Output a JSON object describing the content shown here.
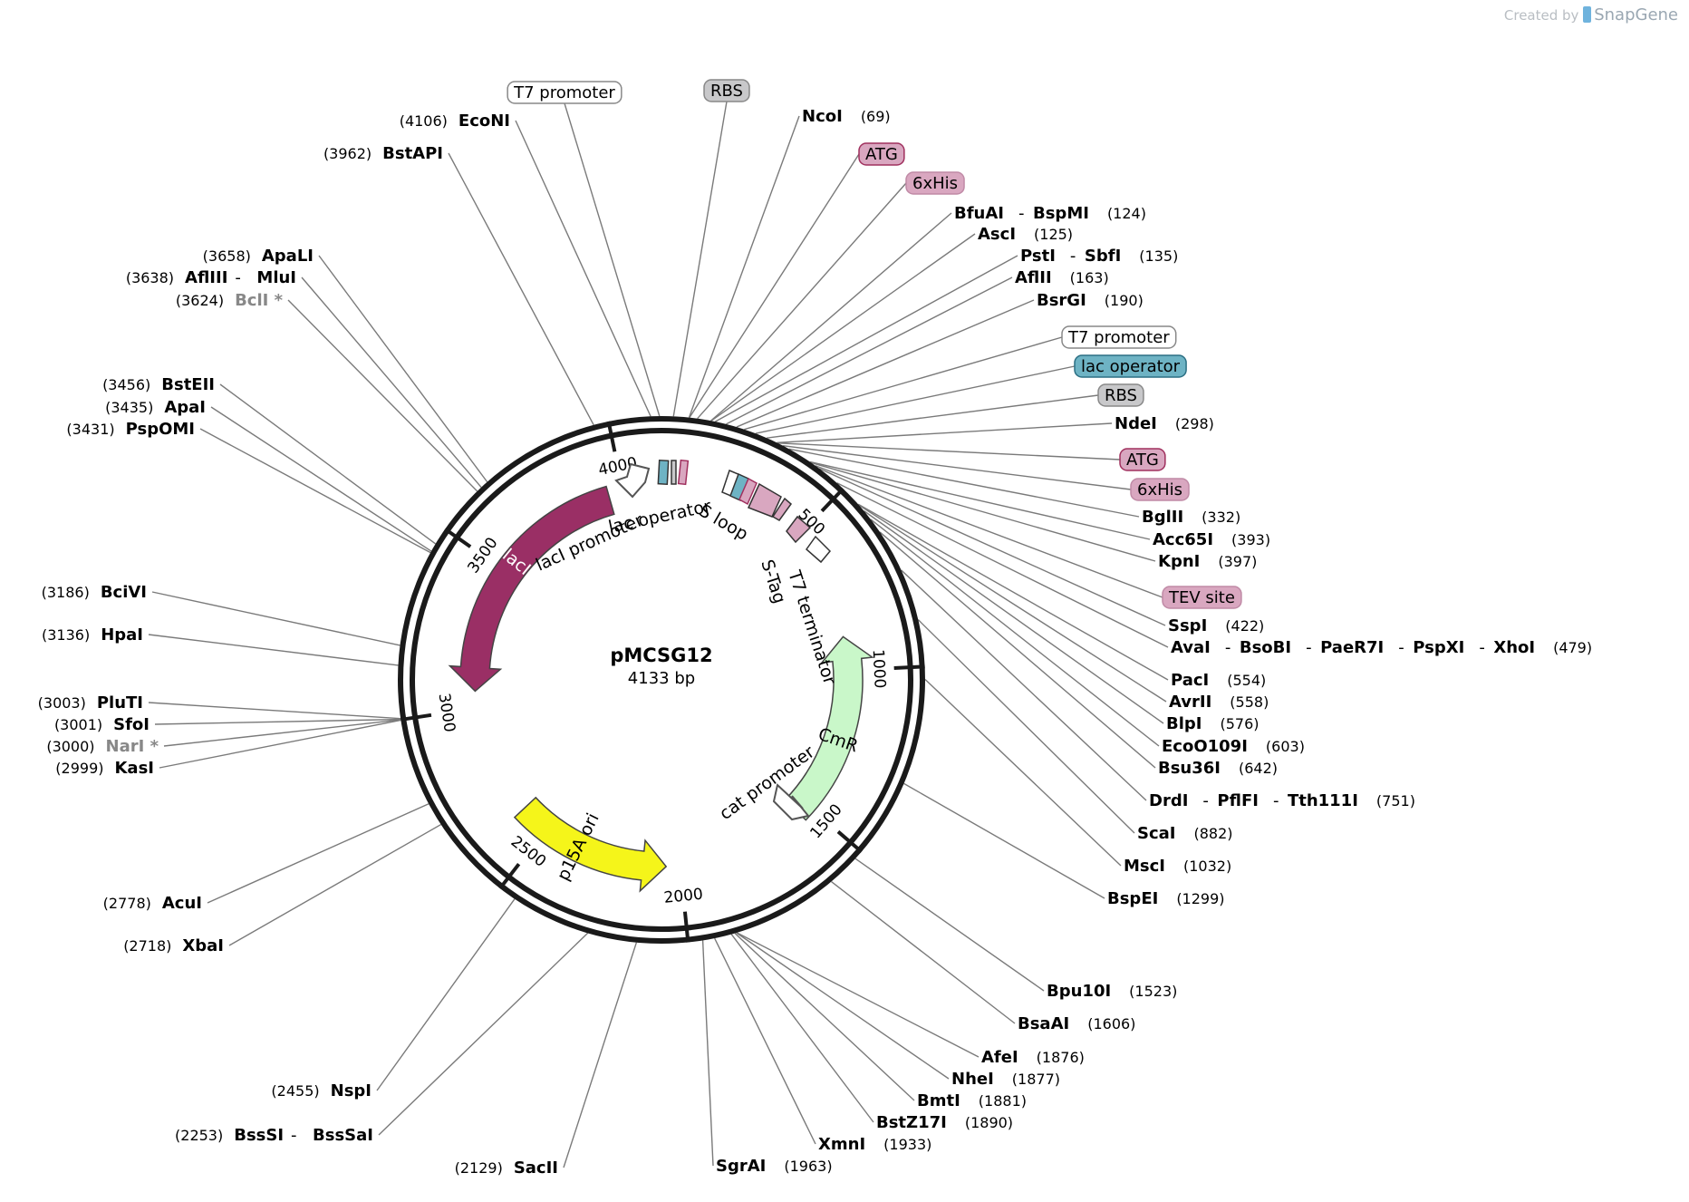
{
  "credit": {
    "prefix": "Created by",
    "brand": "SnapGene"
  },
  "plasmid": {
    "name": "pMCSG12",
    "size_label": "4133 bp",
    "length": 4133
  },
  "colors": {
    "backbone": "#1a1a1a",
    "lacI": "#9a2f65",
    "p15A_ori": "#f5f51a",
    "CmR": "#c9f7c9",
    "lac_operator": "#6eb3c4",
    "pink": "#d9a7c0",
    "pink_border": "#a0305e",
    "grey_box": "#c8c8ca",
    "leader": "#7a7a7a"
  },
  "ticks": [
    {
      "pos": 500,
      "label": "500"
    },
    {
      "pos": 1000,
      "label": "1000"
    },
    {
      "pos": 1500,
      "label": "1500"
    },
    {
      "pos": 2000,
      "label": "2000"
    },
    {
      "pos": 2500,
      "label": "2500"
    },
    {
      "pos": 3000,
      "label": "3000"
    },
    {
      "pos": 3500,
      "label": "3500"
    },
    {
      "pos": 4000,
      "label": "4000"
    }
  ],
  "map_features": [
    {
      "name": "lacI",
      "start": 3950,
      "end": 3060,
      "strand": -1,
      "color": "#9a2f65",
      "text_color": "#ffffff"
    },
    {
      "name": "p15A ori",
      "start": 2605,
      "end": 2050,
      "strand": -1,
      "color": "#f5f51a",
      "text_color": "#000000"
    },
    {
      "name": "CmR",
      "start": 1540,
      "end": 880,
      "strand": -1,
      "color": "#c9f7c9",
      "text_color": "#000000"
    }
  ],
  "inner_labels": [
    {
      "text": "lacI promoter"
    },
    {
      "text": "lac operator"
    },
    {
      "text": "S loop"
    },
    {
      "text": "S-Tag"
    },
    {
      "text": "T7 terminator"
    },
    {
      "text": "cat promoter"
    }
  ],
  "right_labels": [
    {
      "type": "enzyme",
      "names": [
        "NcoI"
      ],
      "pos": "(69)",
      "site": 69
    },
    {
      "type": "feature",
      "text": "ATG",
      "style": "pink-border",
      "site": 70
    },
    {
      "type": "feature",
      "text": "6xHis",
      "style": "pink",
      "site": 90
    },
    {
      "type": "enzyme",
      "names": [
        "BfuAI",
        "BspMI"
      ],
      "pos": "(124)",
      "site": 124
    },
    {
      "type": "enzyme",
      "names": [
        "AscI"
      ],
      "pos": "(125)",
      "site": 125
    },
    {
      "type": "enzyme",
      "names": [
        "PstI",
        "SbfI"
      ],
      "pos": "(135)",
      "site": 135
    },
    {
      "type": "enzyme",
      "names": [
        "AflII"
      ],
      "pos": "(163)",
      "site": 163
    },
    {
      "type": "enzyme",
      "names": [
        "BsrGI"
      ],
      "pos": "(190)",
      "site": 190
    },
    {
      "type": "feature",
      "text": "T7 promoter",
      "style": "white",
      "site": 210
    },
    {
      "type": "feature",
      "text": "lac operator",
      "style": "blue",
      "site": 240
    },
    {
      "type": "feature",
      "text": "RBS",
      "style": "grey",
      "site": 270
    },
    {
      "type": "enzyme",
      "names": [
        "NdeI"
      ],
      "pos": "(298)",
      "site": 298
    },
    {
      "type": "feature",
      "text": "ATG",
      "style": "pink-border",
      "site": 300
    },
    {
      "type": "feature",
      "text": "6xHis",
      "style": "pink",
      "site": 315
    },
    {
      "type": "enzyme",
      "names": [
        "BglII"
      ],
      "pos": "(332)",
      "site": 332
    },
    {
      "type": "enzyme",
      "names": [
        "Acc65I"
      ],
      "pos": "(393)",
      "site": 393
    },
    {
      "type": "enzyme",
      "names": [
        "KpnI"
      ],
      "pos": "(397)",
      "site": 397
    },
    {
      "type": "feature",
      "text": "TEV site",
      "style": "pink",
      "site": 410
    },
    {
      "type": "enzyme",
      "names": [
        "SspI"
      ],
      "pos": "(422)",
      "site": 422
    },
    {
      "type": "enzyme",
      "names": [
        "AvaI",
        "BsoBI",
        "PaeR7I",
        "PspXI",
        "XhoI"
      ],
      "pos": "(479)",
      "site": 479
    },
    {
      "type": "enzyme",
      "names": [
        "PacI"
      ],
      "pos": "(554)",
      "site": 554
    },
    {
      "type": "enzyme",
      "names": [
        "AvrII"
      ],
      "pos": "(558)",
      "site": 558
    },
    {
      "type": "enzyme",
      "names": [
        "BlpI"
      ],
      "pos": "(576)",
      "site": 576
    },
    {
      "type": "enzyme",
      "names": [
        "EcoO109I"
      ],
      "pos": "(603)",
      "site": 603
    },
    {
      "type": "enzyme",
      "names": [
        "Bsu36I"
      ],
      "pos": "(642)",
      "site": 642
    },
    {
      "type": "enzyme",
      "names": [
        "DrdI",
        "PflFI",
        "Tth111I"
      ],
      "pos": "(751)",
      "site": 751
    },
    {
      "type": "enzyme",
      "names": [
        "ScaI"
      ],
      "pos": "(882)",
      "site": 882
    },
    {
      "type": "enzyme",
      "names": [
        "MscI"
      ],
      "pos": "(1032)",
      "site": 1032
    },
    {
      "type": "enzyme",
      "names": [
        "BspEI"
      ],
      "pos": "(1299)",
      "site": 1299
    },
    {
      "type": "enzyme",
      "names": [
        "Bpu10I"
      ],
      "pos": "(1523)",
      "site": 1523
    },
    {
      "type": "enzyme",
      "names": [
        "BsaAI"
      ],
      "pos": "(1606)",
      "site": 1606
    },
    {
      "type": "enzyme",
      "names": [
        "AfeI"
      ],
      "pos": "(1876)",
      "site": 1876
    },
    {
      "type": "enzyme",
      "names": [
        "NheI"
      ],
      "pos": "(1877)",
      "site": 1877
    },
    {
      "type": "enzyme",
      "names": [
        "BmtI"
      ],
      "pos": "(1881)",
      "site": 1881
    },
    {
      "type": "enzyme",
      "names": [
        "BstZ17I"
      ],
      "pos": "(1890)",
      "site": 1890
    },
    {
      "type": "enzyme",
      "names": [
        "XmnI"
      ],
      "pos": "(1933)",
      "site": 1933
    },
    {
      "type": "enzyme",
      "names": [
        "SgrAI"
      ],
      "pos": "(1963)",
      "site": 1963
    }
  ],
  "top_labels": [
    {
      "type": "feature",
      "text": "T7 promoter",
      "style": "white",
      "site": 4128
    },
    {
      "type": "feature",
      "text": "RBS",
      "style": "grey",
      "site": 30
    }
  ],
  "left_labels": [
    {
      "type": "enzyme",
      "names": [
        "EcoNI"
      ],
      "pos": "(4106)",
      "site": 4106
    },
    {
      "type": "enzyme",
      "names": [
        "BstAPI"
      ],
      "pos": "(3962)",
      "site": 3962
    },
    {
      "type": "enzyme",
      "names": [
        "ApaLI"
      ],
      "pos": "(3658)",
      "site": 3658
    },
    {
      "type": "enzyme",
      "names": [
        "AflIII",
        "MluI"
      ],
      "pos": "(3638)",
      "site": 3638
    },
    {
      "type": "enzyme",
      "names": [
        "BclI *"
      ],
      "pos": "(3624)",
      "site": 3624,
      "grey": true
    },
    {
      "type": "enzyme",
      "names": [
        "BstEII"
      ],
      "pos": "(3456)",
      "site": 3456
    },
    {
      "type": "enzyme",
      "names": [
        "ApaI"
      ],
      "pos": "(3435)",
      "site": 3435
    },
    {
      "type": "enzyme",
      "names": [
        "PspOMI"
      ],
      "pos": "(3431)",
      "site": 3431
    },
    {
      "type": "enzyme",
      "names": [
        "BciVI"
      ],
      "pos": "(3186)",
      "site": 3186
    },
    {
      "type": "enzyme",
      "names": [
        "HpaI"
      ],
      "pos": "(3136)",
      "site": 3136
    },
    {
      "type": "enzyme",
      "names": [
        "PluTI"
      ],
      "pos": "(3003)",
      "site": 3003
    },
    {
      "type": "enzyme",
      "names": [
        "SfoI"
      ],
      "pos": "(3001)",
      "site": 3001
    },
    {
      "type": "enzyme",
      "names": [
        "NarI *"
      ],
      "pos": "(3000)",
      "site": 3000,
      "grey": true
    },
    {
      "type": "enzyme",
      "names": [
        "KasI"
      ],
      "pos": "(2999)",
      "site": 2999
    },
    {
      "type": "enzyme",
      "names": [
        "AcuI"
      ],
      "pos": "(2778)",
      "site": 2778
    },
    {
      "type": "enzyme",
      "names": [
        "XbaI"
      ],
      "pos": "(2718)",
      "site": 2718
    },
    {
      "type": "enzyme",
      "names": [
        "NspI"
      ],
      "pos": "(2455)",
      "site": 2455
    },
    {
      "type": "enzyme",
      "names": [
        "BssSI",
        "BssSaI"
      ],
      "pos": "(2253)",
      "site": 2253
    },
    {
      "type": "enzyme",
      "names": [
        "SacII"
      ],
      "pos": "(2129)",
      "site": 2129
    }
  ]
}
